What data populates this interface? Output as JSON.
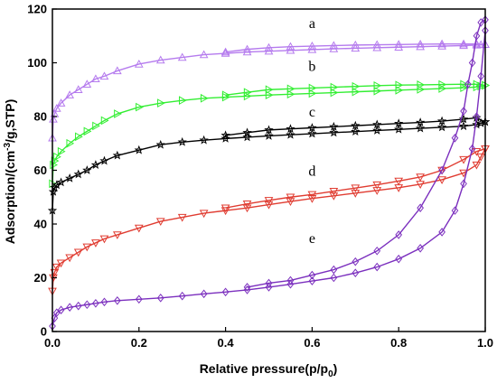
{
  "chart_data": {
    "type": "line",
    "xlabel": "Relative pressure(p/p",
    "xlabel_sub": "0",
    "xlabel_end": ")",
    "ylabel": "Adsorption/(cm",
    "ylabel_sup": "-3",
    "ylabel_end": "/g,STP)",
    "xlim": [
      0.0,
      1.0
    ],
    "ylim": [
      0,
      120
    ],
    "xticks": [
      "0.0",
      "0.2",
      "0.4",
      "0.6",
      "0.8",
      "1.0"
    ],
    "yticks": [
      "0",
      "20",
      "40",
      "60",
      "80",
      "100",
      "120"
    ],
    "grid": false,
    "series": [
      {
        "name": "a",
        "color": "#b57bee",
        "marker": "triangle-up",
        "label_at": [
          0.6,
          113
        ],
        "x": [
          0.0,
          0.002,
          0.005,
          0.01,
          0.02,
          0.04,
          0.06,
          0.08,
          0.1,
          0.12,
          0.15,
          0.2,
          0.25,
          0.3,
          0.35,
          0.4,
          0.45,
          0.5,
          0.55,
          0.6,
          0.65,
          0.7,
          0.75,
          0.8,
          0.85,
          0.9,
          0.95,
          0.98,
          0.99,
          1.0
        ],
        "y": [
          72,
          79,
          81,
          83,
          85,
          88,
          90,
          92,
          94,
          95,
          97,
          99.5,
          101,
          102,
          103,
          103.5,
          104,
          104.3,
          104.6,
          104.9,
          105.2,
          105.4,
          105.6,
          105.8,
          106,
          106.2,
          106.4,
          106.6,
          106.7,
          106.8
        ],
        "x_des": [
          1.0,
          0.98,
          0.95,
          0.9,
          0.85,
          0.8,
          0.75,
          0.7,
          0.65,
          0.6,
          0.55,
          0.5,
          0.45,
          0.4
        ],
        "y_des": [
          106.8,
          107,
          107,
          107,
          106.9,
          106.8,
          106.7,
          106.6,
          106.4,
          106.2,
          106,
          105.6,
          105,
          104
        ]
      },
      {
        "name": "b",
        "color": "#33ee33",
        "marker": "triangle-right",
        "label_at": [
          0.6,
          97
        ],
        "x": [
          0.0,
          0.002,
          0.005,
          0.01,
          0.02,
          0.04,
          0.06,
          0.08,
          0.1,
          0.12,
          0.15,
          0.2,
          0.25,
          0.3,
          0.35,
          0.4,
          0.45,
          0.5,
          0.55,
          0.6,
          0.65,
          0.7,
          0.75,
          0.8,
          0.85,
          0.9,
          0.95,
          0.98,
          0.99,
          1.0
        ],
        "y": [
          55,
          62,
          63.5,
          65,
          67,
          70,
          72.5,
          74.5,
          76.5,
          78.5,
          81,
          83.5,
          85,
          86,
          86.8,
          87.2,
          87.6,
          88,
          88.3,
          88.6,
          88.9,
          89.2,
          89.5,
          89.8,
          90.1,
          90.4,
          90.7,
          91,
          91.3,
          91.6
        ],
        "x_des": [
          1.0,
          0.98,
          0.95,
          0.9,
          0.85,
          0.8,
          0.75,
          0.7,
          0.65,
          0.6,
          0.55,
          0.5,
          0.45,
          0.4
        ],
        "y_des": [
          91.6,
          92,
          92,
          91.9,
          91.8,
          91.7,
          91.5,
          91.2,
          90.9,
          90.6,
          90.3,
          90,
          89,
          88
        ]
      },
      {
        "name": "c",
        "color": "#000000",
        "marker": "star",
        "label_at": [
          0.6,
          80
        ],
        "x": [
          0.0,
          0.002,
          0.005,
          0.01,
          0.02,
          0.04,
          0.06,
          0.08,
          0.1,
          0.12,
          0.15,
          0.2,
          0.25,
          0.3,
          0.35,
          0.4,
          0.45,
          0.5,
          0.55,
          0.6,
          0.65,
          0.7,
          0.75,
          0.8,
          0.85,
          0.9,
          0.95,
          0.98,
          0.99,
          1.0
        ],
        "y": [
          45,
          52,
          53.5,
          54.5,
          55.5,
          57,
          58.5,
          60,
          62,
          63.5,
          65.5,
          67.5,
          69.5,
          70.5,
          71.2,
          71.8,
          72.3,
          72.8,
          73.2,
          73.6,
          74,
          74.4,
          74.8,
          75.2,
          75.6,
          76,
          76.4,
          77,
          77.5,
          78
        ],
        "x_des": [
          1.0,
          0.98,
          0.95,
          0.9,
          0.85,
          0.8,
          0.75,
          0.7,
          0.65,
          0.6,
          0.55,
          0.5,
          0.45,
          0.4
        ],
        "y_des": [
          78,
          79.5,
          79,
          78.3,
          77.8,
          77.4,
          77,
          76.6,
          76.2,
          75.8,
          75.4,
          75,
          74,
          73
        ]
      },
      {
        "name": "d",
        "color": "#e03c31",
        "marker": "triangle-down",
        "label_at": [
          0.6,
          58
        ],
        "x": [
          0.0,
          0.002,
          0.005,
          0.01,
          0.02,
          0.04,
          0.06,
          0.08,
          0.1,
          0.12,
          0.15,
          0.2,
          0.25,
          0.3,
          0.35,
          0.4,
          0.45,
          0.5,
          0.55,
          0.6,
          0.65,
          0.7,
          0.75,
          0.8,
          0.85,
          0.9,
          0.95,
          0.98,
          0.99,
          1.0
        ],
        "y": [
          15,
          20,
          22,
          24,
          25.5,
          27.5,
          29.5,
          31.5,
          33,
          34.5,
          36,
          38.5,
          41,
          42.5,
          44,
          45,
          46,
          47.2,
          48.4,
          49.5,
          50.5,
          51.5,
          52.5,
          53.5,
          54.8,
          56.5,
          59,
          62,
          65,
          68
        ],
        "x_des": [
          1.0,
          0.98,
          0.95,
          0.9,
          0.85,
          0.8,
          0.75,
          0.7,
          0.65,
          0.6,
          0.55,
          0.5,
          0.45,
          0.4
        ],
        "y_des": [
          68,
          67,
          64,
          60,
          57.5,
          56,
          54.6,
          53.4,
          52.2,
          51,
          50,
          48.8,
          47.5,
          46
        ]
      },
      {
        "name": "e",
        "color": "#7b2fbe",
        "marker": "diamond",
        "label_at": [
          0.6,
          33
        ],
        "x": [
          0.0,
          0.005,
          0.01,
          0.02,
          0.04,
          0.06,
          0.08,
          0.1,
          0.12,
          0.15,
          0.2,
          0.25,
          0.3,
          0.35,
          0.4,
          0.45,
          0.5,
          0.55,
          0.6,
          0.65,
          0.7,
          0.75,
          0.8,
          0.85,
          0.9,
          0.93,
          0.95,
          0.97,
          0.98,
          0.99,
          1.0
        ],
        "y": [
          2,
          5,
          7,
          8,
          9,
          9.5,
          10,
          10.5,
          11,
          11.5,
          12,
          12.5,
          13.2,
          14,
          14.7,
          15.5,
          16.5,
          17.6,
          18.8,
          20,
          21.8,
          24,
          27,
          31,
          37,
          45,
          55,
          68,
          80,
          95,
          112
        ],
        "x_des": [
          1.0,
          0.99,
          0.98,
          0.97,
          0.96,
          0.95,
          0.93,
          0.9,
          0.85,
          0.8,
          0.75,
          0.7,
          0.65,
          0.6,
          0.55,
          0.5,
          0.45
        ],
        "y_des": [
          116,
          115,
          110,
          100,
          92,
          82,
          72,
          60,
          46,
          36,
          30,
          26,
          23,
          21,
          19,
          18,
          16.5
        ]
      }
    ]
  }
}
